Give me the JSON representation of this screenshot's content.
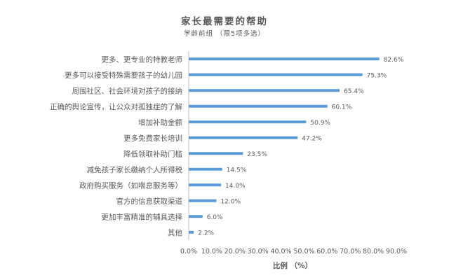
{
  "chart_data": {
    "type": "bar",
    "orientation": "horizontal",
    "title": "家长最需要的帮助",
    "subtitle": "学龄前组 （限5项多选）",
    "xlabel": "比例 （%）",
    "xlim": [
      0,
      90
    ],
    "xticks": [
      "0.0%",
      "10.0%",
      "20.0%",
      "30.0%",
      "40.0%",
      "50.0%",
      "60.0%",
      "70.0%",
      "80.0%",
      "90.0%"
    ],
    "categories": [
      "更多、更专业的特教老师",
      "更多可以接受特殊需要孩子的幼儿园",
      "周围社区、社会环境对孩子的接纳",
      "正确的舆论宣传，让公众对孤独症的了解",
      "增加补助金额",
      "更多免费家长培训",
      "降低领取补助门槛",
      "减免孩子家长缴纳个人所得税",
      "政府购买服务（如喘息服务等）",
      "官方的信息获取渠道",
      "更加丰富精准的辅具选择",
      "其他"
    ],
    "values": [
      82.6,
      75.3,
      65.4,
      60.1,
      50.9,
      47.2,
      23.5,
      14.5,
      14.0,
      12.0,
      6.0,
      2.2
    ],
    "data_labels": [
      "82.6%",
      "75.3%",
      "65.4%",
      "60.1%",
      "50.9%",
      "47.2%",
      "23.5%",
      "14.5%",
      "14.0%",
      "12.0%",
      "6.0%",
      "2.2%"
    ],
    "bar_color": "#5B9BD5",
    "text_color": "#595959",
    "axis_color": "#BFBFBF",
    "grid": false,
    "legend": "none"
  }
}
